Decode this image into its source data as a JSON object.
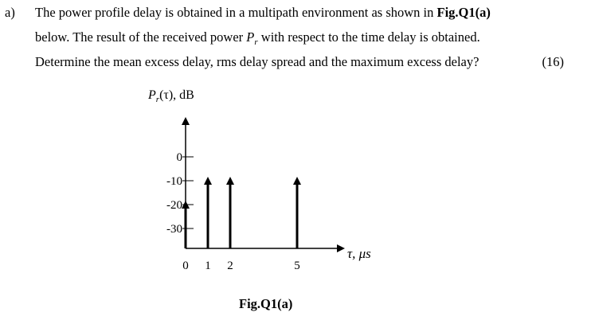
{
  "question": {
    "label": "a)",
    "line1_before": "The power profile delay is obtained in a multipath environment as shown in ",
    "line1_bold": "Fig.Q1(a)",
    "line2_before": "below. The result of the received power ",
    "line2_symbol": "P",
    "line2_sub": "r",
    "line2_after": " with respect to the time delay is obtained.",
    "line3": "Determine the mean excess delay, rms delay spread and the maximum excess delay?",
    "marks": "(16)"
  },
  "figure": {
    "y_axis_label": "P_r(τ), dB",
    "x_axis_label": "τ,  μs",
    "caption": "Fig.Q1(a)"
  },
  "chart_data": {
    "type": "bar",
    "title": "",
    "xlabel": "τ, μs",
    "ylabel": "P_r(τ), dB",
    "x_ticks": [
      "0",
      "1",
      "2",
      "5"
    ],
    "y_ticks": [
      "0",
      "-10",
      "-20",
      "-30"
    ],
    "ylim": [
      -35,
      5
    ],
    "x_values": [
      0,
      1,
      2,
      5
    ],
    "values": [
      -20,
      -10,
      -10,
      -10
    ],
    "grid": false
  }
}
